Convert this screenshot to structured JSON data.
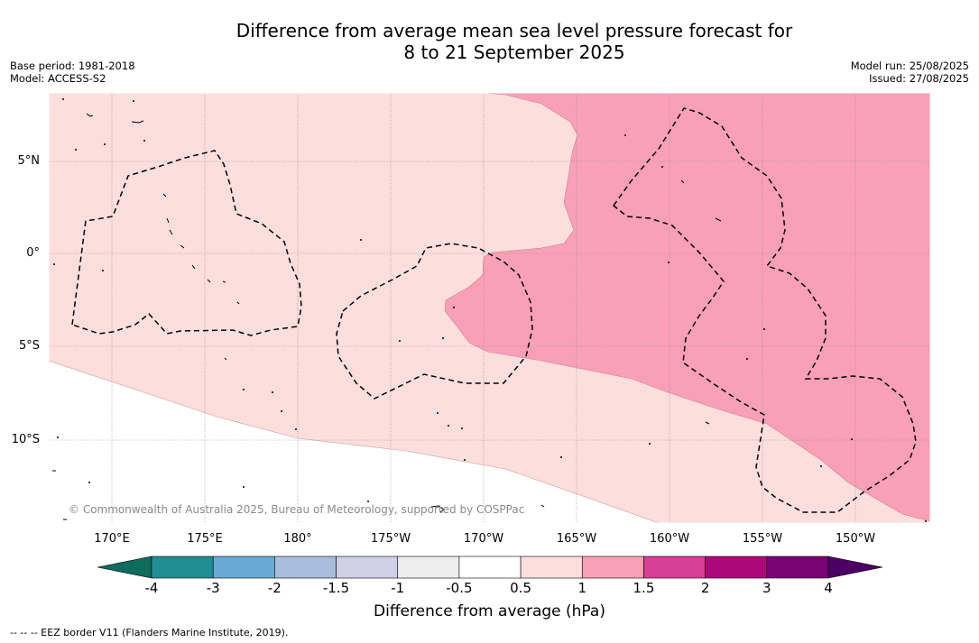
{
  "title": {
    "line1": "Difference from average mean sea level pressure forecast for",
    "line2": "8 to 21 September 2025"
  },
  "meta_left": {
    "base_period": "Base period: 1981-2018",
    "model": "Model: ACCESS-S2"
  },
  "meta_right": {
    "model_run": "Model run: 25/08/2025",
    "issued": "Issued: 27/08/2025"
  },
  "map": {
    "lat_labels": [
      "5°N",
      "0°",
      "5°S",
      "10°S"
    ],
    "lon_labels": [
      "170°E",
      "175°E",
      "180°",
      "175°W",
      "170°W",
      "165°W",
      "160°W",
      "155°W",
      "150°W"
    ],
    "copyright": "© Commonwealth of Australia 2025, Bureau of Meteorology, supported by COSPPac",
    "colors": {
      "band_0_5_to_1": "#fcdedd",
      "band_1_to_1_5": "#f9a0b6",
      "grid": "#888888"
    }
  },
  "colorbar": {
    "title": "Difference from average (hPa)",
    "tick_labels": [
      "-4",
      "-3",
      "-2",
      "-1.5",
      "-1",
      "-0.5",
      "0.5",
      "1",
      "1.5",
      "2",
      "3",
      "4"
    ],
    "colors": [
      "#1f8f93",
      "#6aa9d3",
      "#a8bcdc",
      "#cfd0e6",
      "#ededee",
      "#ffffff",
      "#fcdedd",
      "#f9a0b6",
      "#d83f96",
      "#ad0879",
      "#7a0474"
    ],
    "under_color": "#0f6b5c",
    "over_color": "#4b0066"
  },
  "footnote": "--  --  -- EEZ border V11 (Flanders Marine Institute, 2019)."
}
